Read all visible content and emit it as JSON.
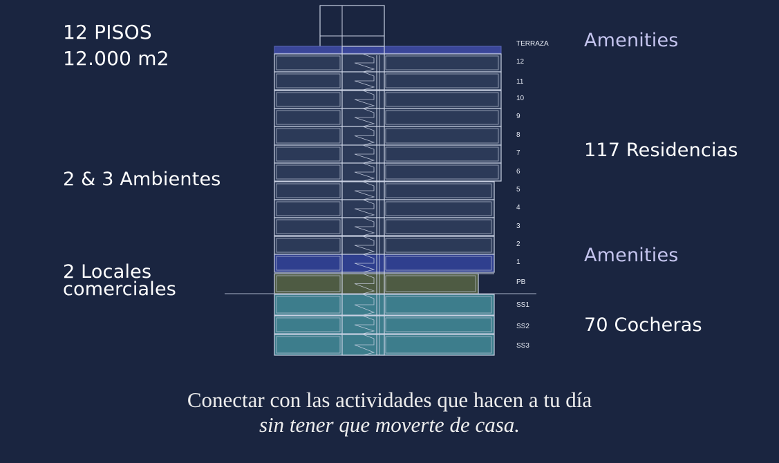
{
  "left_stats": {
    "floors": "12 PISOS",
    "area": "12.000 m2",
    "units_types": "2 & 3 Ambientes",
    "shops_line1": "2 Locales",
    "shops_line2": "comerciales"
  },
  "right_stats": {
    "amenities_top": "Amenities",
    "residences": "117 Residencias",
    "amenities_low": "Amenities",
    "parking": "70 Cocheras"
  },
  "floors": [
    {
      "label": "TERRAZA",
      "zone": "terrace"
    },
    {
      "label": "12",
      "zone": "residential"
    },
    {
      "label": "11",
      "zone": "residential"
    },
    {
      "label": "10",
      "zone": "residential"
    },
    {
      "label": "9",
      "zone": "residential"
    },
    {
      "label": "8",
      "zone": "residential"
    },
    {
      "label": "7",
      "zone": "residential"
    },
    {
      "label": "6",
      "zone": "residential"
    },
    {
      "label": "5",
      "zone": "residential"
    },
    {
      "label": "4",
      "zone": "residential"
    },
    {
      "label": "3",
      "zone": "residential"
    },
    {
      "label": "2",
      "zone": "residential"
    },
    {
      "label": "1",
      "zone": "amenities"
    },
    {
      "label": "PB",
      "zone": "commercial"
    },
    {
      "label": "SS1",
      "zone": "parking"
    },
    {
      "label": "SS2",
      "zone": "parking"
    },
    {
      "label": "SS3",
      "zone": "parking"
    }
  ],
  "colors": {
    "background": "#1a2540",
    "residential": "#2c3a58",
    "amenities": "#2f3f8e",
    "terrace": "#3a4699",
    "commercial": "#4e5b43",
    "parking": "#3d7d8c",
    "outline": "#c9d0e2",
    "accent_text": "#c4c4ee"
  },
  "caption": {
    "line1": "Conectar con las actividades que hacen a tu día",
    "line2": "sin tener que moverte de casa."
  }
}
